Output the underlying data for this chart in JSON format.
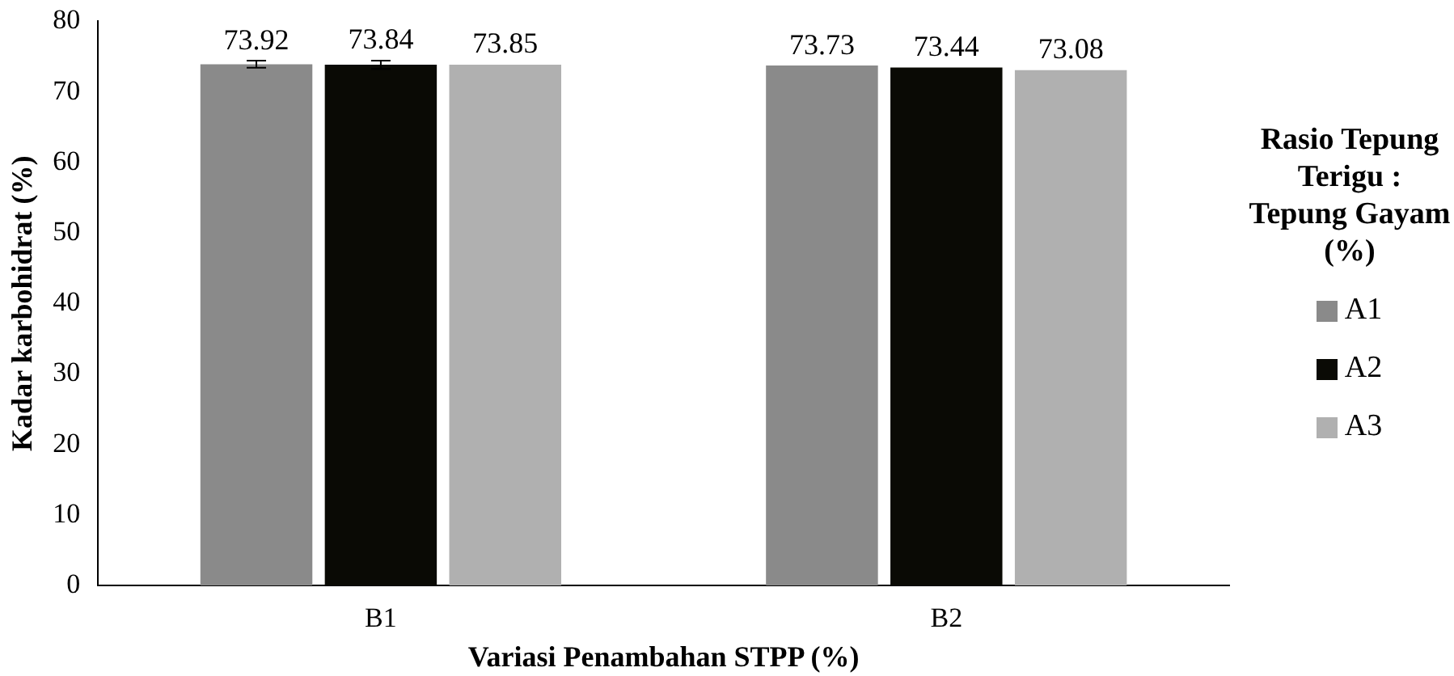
{
  "chart_data": {
    "type": "bar",
    "xlabel": "Variasi Penambahan STPP (%)",
    "ylabel": "Kadar karbohidrat (%)",
    "legend_title": "Rasio Tepung Terigu : Tepung Gayam (%)",
    "categories": [
      "B1",
      "B2"
    ],
    "series": [
      {
        "name": "A1",
        "color": "#8a8a8a",
        "values": [
          73.92,
          73.73
        ],
        "errors": [
          0.5,
          null
        ]
      },
      {
        "name": "A2",
        "color": "#0a0a05",
        "values": [
          73.84,
          73.44
        ],
        "errors": [
          0.6,
          null
        ]
      },
      {
        "name": "A3",
        "color": "#b0b0b0",
        "values": [
          73.85,
          73.08
        ],
        "errors": [
          null,
          null
        ]
      }
    ],
    "ylim": [
      0,
      80
    ],
    "yticks": [
      0,
      10,
      20,
      30,
      40,
      50,
      60,
      70,
      80
    ],
    "grid": false,
    "legend": "right",
    "data_labels": true
  }
}
